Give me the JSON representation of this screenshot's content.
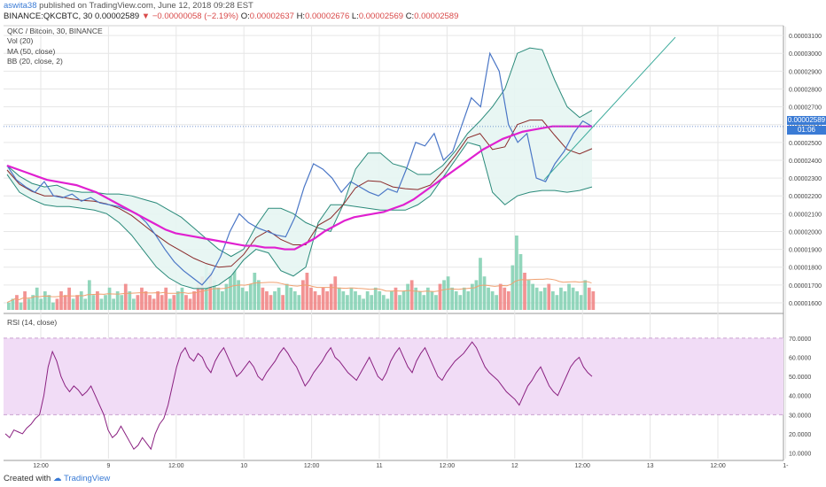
{
  "header": {
    "author": "aswita38",
    "published_text": "published on TradingView.com, June 12, 2018 09:28 EST",
    "symbol": "BINANCE:QKCBTC, 30",
    "last": "0.00002589",
    "change": "−0.00000058 (−2.19%)",
    "ohlc": {
      "o": "0.00002637",
      "h": "0.00002676",
      "l": "0.00002569",
      "c": "0.00002589"
    }
  },
  "legend": {
    "title": "QKC / Bitcoin, 30, BINANCE",
    "vol": "Vol (20)",
    "ma": "MA (50, close)",
    "bb": "BB (20, close, 2)"
  },
  "rsi_label": "RSI (14, close)",
  "badges": {
    "price": "0.00002589",
    "time": "01:06"
  },
  "footer": {
    "created_with": "Created with",
    "brand": "TradingView"
  },
  "colors": {
    "price": "#4a76c6",
    "ma": "#e020d0",
    "bb_mid": "#8a2a2a",
    "bb_band": "#2a8a7a",
    "bb_fill": "#e6f5f2",
    "vol_up": "#7fcfb0",
    "vol_down": "#f08080",
    "rsi": "#8a2080",
    "rsi_fill": "#f1dcf6",
    "grid": "#e6e6e6"
  },
  "chart_data": [
    {
      "type": "line",
      "title": "QKC / Bitcoin, 30, BINANCE",
      "ylim": [
        1.55e-05,
        3.15e-05
      ],
      "y_ticks": [
        "0.00003100",
        "0.00003000",
        "0.00002900",
        "0.00002800",
        "0.00002700",
        "0.00002600",
        "0.00002500",
        "0.00002400",
        "0.00002300",
        "0.00002200",
        "0.00002100",
        "0.00002000",
        "0.00001900",
        "0.00001800",
        "0.00001700",
        "0.00001600"
      ],
      "x_ticks": [
        "12:00",
        "9",
        "12:00",
        "10",
        "12:00",
        "11",
        "12:00",
        "12",
        "12:00",
        "13",
        "12:00",
        "1-"
      ],
      "series": [
        {
          "values": [
            2.37e-05,
            2.29e-05,
            2.25e-05,
            2.22e-05,
            2.28e-05,
            2.2e-05,
            2.19e-05,
            2.21e-05,
            2.17e-05,
            2.19e-05,
            2.16e-05,
            2.15e-05,
            2.14e-05,
            2.12e-05,
            2.1e-05,
            2.05e-05,
            1.98e-05,
            1.9e-05,
            1.83e-05,
            1.78e-05,
            1.74e-05,
            1.7e-05,
            1.76e-05,
            1.86e-05,
            2e-05,
            2.1e-05,
            2.05e-05,
            2.02e-05,
            2e-05,
            1.98e-05,
            1.97e-05,
            2.08e-05,
            2.25e-05,
            2.38e-05,
            2.35e-05,
            2.3e-05,
            2.22e-05,
            2.28e-05,
            2.25e-05,
            2.22e-05,
            2.2e-05,
            2.24e-05,
            2.22e-05,
            2.35e-05,
            2.5e-05,
            2.48e-05,
            2.55e-05,
            2.4e-05,
            2.45e-05,
            2.6e-05,
            2.75e-05,
            2.7e-05,
            3e-05,
            2.9e-05,
            2.6e-05,
            2.5e-05,
            2.55e-05,
            2.3e-05,
            2.28e-05,
            2.38e-05,
            2.45e-05,
            2.55e-05,
            2.62e-05,
            2.59e-05
          ]
        },
        {
          "name": "MA (50, close)",
          "values": [
            2.37e-05,
            2.35e-05,
            2.33e-05,
            2.31e-05,
            2.29e-05,
            2.28e-05,
            2.27e-05,
            2.26e-05,
            2.24e-05,
            2.22e-05,
            2.19e-05,
            2.16e-05,
            2.13e-05,
            2.1e-05,
            2.07e-05,
            2.04e-05,
            2.01e-05,
            1.99e-05,
            1.98e-05,
            1.97e-05,
            1.96e-05,
            1.95e-05,
            1.94e-05,
            1.93e-05,
            1.92e-05,
            1.92e-05,
            1.91e-05,
            1.91e-05,
            1.9e-05,
            1.9e-05,
            1.93e-05,
            1.96e-05,
            2e-05,
            2.03e-05,
            2.06e-05,
            2.08e-05,
            2.09e-05,
            2.1e-05,
            2.11e-05,
            2.13e-05,
            2.15e-05,
            2.18e-05,
            2.22e-05,
            2.26e-05,
            2.3e-05,
            2.34e-05,
            2.38e-05,
            2.42e-05,
            2.46e-05,
            2.49e-05,
            2.52e-05,
            2.54e-05,
            2.56e-05,
            2.57e-05,
            2.58e-05,
            2.59e-05,
            2.59e-05,
            2.59e-05,
            2.59e-05,
            2.59e-05
          ]
        },
        {
          "name": "BB upper",
          "values": [
            2.37e-05,
            2.31e-05,
            2.27e-05,
            2.25e-05,
            2.26e-05,
            2.23e-05,
            2.22e-05,
            2.22e-05,
            2.21e-05,
            2.21e-05,
            2.2e-05,
            2.18e-05,
            2.16e-05,
            2.12e-05,
            2.08e-05,
            2.02e-05,
            1.96e-05,
            1.9e-05,
            1.86e-05,
            1.9e-05,
            2.03e-05,
            2.13e-05,
            2.13e-05,
            2.1e-05,
            2.05e-05,
            2.02e-05,
            2e-05,
            2.15e-05,
            2.35e-05,
            2.44e-05,
            2.44e-05,
            2.38e-05,
            2.36e-05,
            2.32e-05,
            2.32e-05,
            2.37e-05,
            2.45e-05,
            2.55e-05,
            2.62e-05,
            2.7e-05,
            2.8e-05,
            3e-05,
            3.03e-05,
            3.02e-05,
            2.85e-05,
            2.7e-05,
            2.64e-05,
            2.68e-05
          ]
        },
        {
          "name": "BB lower",
          "values": [
            2.32e-05,
            2.22e-05,
            2.18e-05,
            2.15e-05,
            2.14e-05,
            2.14e-05,
            2.13e-05,
            2.12e-05,
            2.1e-05,
            2.05e-05,
            1.98e-05,
            1.89e-05,
            1.8e-05,
            1.74e-05,
            1.7e-05,
            1.68e-05,
            1.68e-05,
            1.7e-05,
            1.75e-05,
            1.84e-05,
            1.9e-05,
            1.88e-05,
            1.78e-05,
            1.75e-05,
            1.8e-05,
            2.05e-05,
            2.15e-05,
            2.15e-05,
            2.14e-05,
            2.13e-05,
            2.12e-05,
            2.12e-05,
            2.12e-05,
            2.15e-05,
            2.2e-05,
            2.3e-05,
            2.4e-05,
            2.5e-05,
            2.48e-05,
            2.22e-05,
            2.15e-05,
            2.2e-05,
            2.22e-05,
            2.23e-05,
            2.23e-05,
            2.22e-05,
            2.23e-05,
            2.25e-05
          ]
        }
      ]
    },
    {
      "type": "bar",
      "title": "Vol (20)",
      "values": [
        2,
        3,
        4,
        2,
        5,
        3,
        4,
        6,
        3,
        5,
        4,
        2,
        3,
        5,
        4,
        6,
        3,
        4,
        5,
        3,
        8,
        4,
        5,
        3,
        4,
        6,
        3,
        5,
        4,
        7,
        5,
        3,
        4,
        6,
        5,
        4,
        3,
        5,
        4,
        6,
        3,
        4,
        5,
        6,
        4,
        3,
        5,
        7,
        9,
        12,
        10,
        8,
        6,
        5,
        7,
        9,
        11,
        8,
        6,
        5,
        7,
        10,
        8,
        6,
        5,
        4,
        5,
        6,
        4,
        7,
        6,
        5,
        4,
        8,
        10,
        6,
        5,
        4,
        6,
        5,
        7,
        9,
        6,
        5,
        4,
        6,
        5,
        4,
        3,
        5,
        4,
        6,
        5,
        4,
        3,
        5,
        6,
        4,
        5,
        7,
        8,
        6,
        5,
        4,
        6,
        5,
        4,
        7,
        8,
        9,
        6,
        5,
        4,
        6,
        5,
        7,
        8,
        14,
        9,
        6,
        5,
        4,
        7,
        6,
        5,
        12,
        20,
        15,
        10,
        8,
        7,
        6,
        5,
        6,
        7,
        5,
        4,
        6,
        5,
        7,
        6,
        5,
        4,
        8,
        6,
        5
      ]
    },
    {
      "type": "line",
      "title": "RSI (14, close)",
      "ylim": [
        7,
        82
      ],
      "y_ticks": [
        "70.0000",
        "60.0000",
        "50.0000",
        "40.0000",
        "30.0000",
        "20.0000",
        "10.0000"
      ],
      "band": [
        30,
        70
      ],
      "values": [
        20,
        18,
        22,
        21,
        20,
        23,
        25,
        28,
        30,
        40,
        55,
        63,
        58,
        50,
        45,
        42,
        45,
        43,
        40,
        42,
        45,
        40,
        35,
        30,
        22,
        18,
        20,
        24,
        20,
        16,
        12,
        14,
        18,
        15,
        12,
        20,
        25,
        28,
        35,
        45,
        55,
        62,
        65,
        60,
        58,
        62,
        60,
        55,
        52,
        58,
        62,
        65,
        60,
        55,
        50,
        52,
        55,
        58,
        55,
        50,
        48,
        52,
        55,
        58,
        62,
        65,
        62,
        58,
        55,
        50,
        45,
        48,
        52,
        55,
        58,
        62,
        65,
        60,
        58,
        55,
        52,
        50,
        48,
        52,
        56,
        60,
        55,
        50,
        48,
        52,
        58,
        62,
        65,
        60,
        55,
        52,
        58,
        62,
        65,
        60,
        55,
        50,
        48,
        52,
        55,
        58,
        60,
        62,
        65,
        68,
        65,
        60,
        55,
        52,
        50,
        48,
        45,
        42,
        40,
        38,
        35,
        40,
        45,
        48,
        52,
        55,
        50,
        45,
        42,
        40,
        45,
        50,
        55,
        58,
        60,
        55,
        52,
        50
      ]
    }
  ]
}
